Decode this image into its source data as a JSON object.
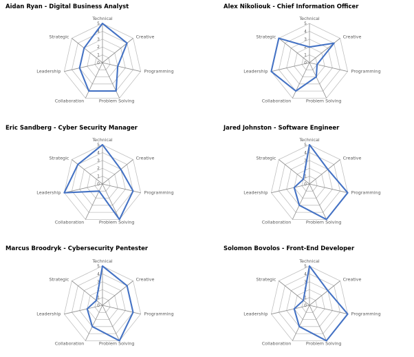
{
  "chart_data": [
    {
      "type": "radar",
      "title": "Aidan Ryan - Digital Business Analyst",
      "axes": [
        "Technical",
        "Creative",
        "Programming",
        "Problem Solving",
        "Collaboration",
        "Leadership",
        "Strategic"
      ],
      "values": [
        5,
        4,
        2,
        4,
        4,
        3,
        3
      ],
      "rlim": [
        0,
        5
      ],
      "ticks": [
        "0",
        "1",
        "2",
        "3",
        "4",
        "5"
      ],
      "grid": true,
      "color": "#4472c4"
    },
    {
      "type": "radar",
      "title": "Alex Nikoliouk - Chief Information Officer",
      "axes": [
        "Technical",
        "Creative",
        "Programming",
        "Problem Solving",
        "Collaboration",
        "Leadership",
        "Strategic"
      ],
      "values": [
        2,
        4,
        1,
        2,
        4,
        5,
        5
      ],
      "rlim": [
        0,
        5
      ],
      "ticks": [
        "0",
        "1",
        "2",
        "3",
        "4",
        "5"
      ],
      "grid": true,
      "color": "#4472c4"
    },
    {
      "type": "radar",
      "title": "Eric Sandberg - Cyber Security Manager",
      "axes": [
        "Technical",
        "Creative",
        "Programming",
        "Problem Solving",
        "Collaboration",
        "Leadership",
        "Strategic"
      ],
      "values": [
        5,
        3,
        4,
        5,
        1,
        5,
        4
      ],
      "rlim": [
        0,
        5
      ],
      "ticks": [
        "0",
        "1",
        "2",
        "3",
        "4",
        "5"
      ],
      "grid": true,
      "color": "#4472c4"
    },
    {
      "type": "radar",
      "title": "Jared Johnston - Software Engineer",
      "axes": [
        "Technical",
        "Creative",
        "Programming",
        "Problem Solving",
        "Collaboration",
        "Leadership",
        "Strategic"
      ],
      "values": [
        5,
        3,
        5,
        5,
        3,
        2,
        1
      ],
      "rlim": [
        0,
        5
      ],
      "ticks": [
        "0",
        "1",
        "2",
        "3",
        "4",
        "5"
      ],
      "grid": true,
      "color": "#4472c4"
    },
    {
      "type": "radar",
      "title": "Marcus Broodryk - Cybersecurity Pentester",
      "axes": [
        "Technical",
        "Creative",
        "Programming",
        "Problem Solving",
        "Collaboration",
        "Leadership",
        "Strategic"
      ],
      "values": [
        5,
        4,
        4,
        5,
        3,
        2,
        1
      ],
      "rlim": [
        0,
        5
      ],
      "ticks": [
        "0",
        "1",
        "2",
        "3",
        "4",
        "5"
      ],
      "grid": true,
      "color": "#4472c4"
    },
    {
      "type": "radar",
      "title": "Solomon Bovolos - Front-End Developer",
      "axes": [
        "Technical",
        "Creative",
        "Programming",
        "Problem Solving",
        "Collaboration",
        "Leadership",
        "Strategic"
      ],
      "values": [
        5,
        3,
        5,
        5,
        3,
        2,
        1
      ],
      "rlim": [
        0,
        5
      ],
      "ticks": [
        "0",
        "1",
        "2",
        "3",
        "4",
        "5"
      ],
      "grid": true,
      "color": "#4472c4"
    }
  ]
}
